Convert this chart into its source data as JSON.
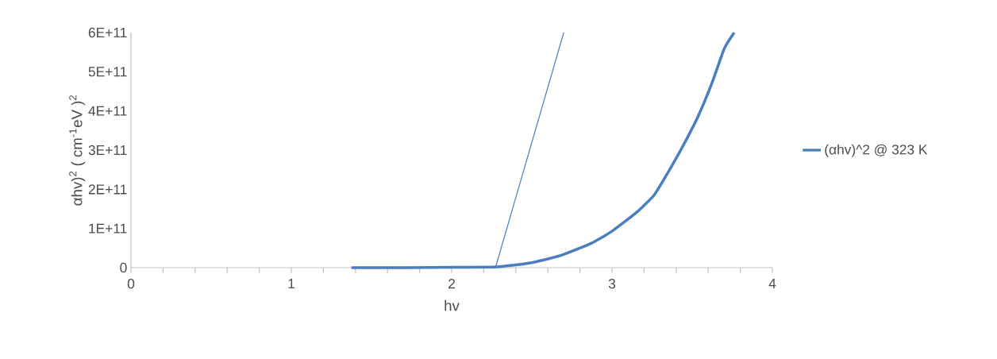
{
  "chart_data": {
    "type": "line",
    "xlabel": "hv",
    "ylabel": "αhv)$^{2}$ ( cm$^{-1}$eV )$^{2}$",
    "series": [
      {
        "name": "(αhv)^2 @ 323 K",
        "color": "#4a7ebf",
        "x": [
          1.375,
          1.73,
          2.0,
          2.281,
          2.49,
          2.68,
          2.87,
          3.0,
          3.15,
          3.264,
          3.368,
          3.463,
          3.539,
          3.625,
          3.7,
          3.762
        ],
        "values": [
          0,
          0,
          1000000000.0,
          2000000000.0,
          12000000000.0,
          31000000000.0,
          62000000000.0,
          93000000000.0,
          140000000000.0,
          186000000000.0,
          256000000000.0,
          326000000000.0,
          388000000000.0,
          473000000000.0,
          559000000000.0,
          600000000000.0
        ]
      },
      {
        "type": "line",
        "color": "#4a7ebf",
        "x": [
          2.273,
          2.699
        ],
        "values": [
          0,
          600000000000.0
        ]
      }
    ],
    "xlim": [
      0,
      4
    ],
    "ylim": [
      0,
      600000000000.0
    ],
    "xticks": [
      0,
      {
        "value": 0.2,
        "label": null
      },
      {
        "value": 0.4,
        "label": null
      },
      {
        "value": 0.6,
        "label": null
      },
      {
        "value": 0.8,
        "label": null
      },
      1,
      {
        "value": 1.2,
        "label": null
      },
      {
        "value": 1.4,
        "label": null
      },
      {
        "value": 1.6,
        "label": null
      },
      {
        "value": 1.8,
        "label": null
      },
      2,
      {
        "value": 2.2,
        "label": null
      },
      {
        "value": 2.4,
        "label": null
      },
      {
        "value": 2.6,
        "label": null
      },
      {
        "value": 2.8,
        "label": null
      },
      3,
      {
        "value": 3.2,
        "label": null
      },
      {
        "value": 3.4,
        "label": null
      },
      {
        "value": 3.6,
        "label": null
      },
      {
        "value": 3.8,
        "label": null
      },
      4
    ],
    "yticks": [
      0,
      {
        "value": 100000000000.0,
        "label": "1E+11"
      },
      {
        "value": 200000000000.0,
        "label": "2E+11"
      },
      {
        "value": 300000000000.0,
        "label": "3E+11"
      },
      {
        "value": 400000000000.0,
        "label": "4E+11"
      },
      {
        "value": 500000000000.0,
        "label": "5E+11"
      },
      {
        "value": 600000000000.0,
        "label": "6E+11"
      }
    ],
    "legend": "right",
    "grid": false,
    "marker": "none",
    "line_style": "solid"
  }
}
